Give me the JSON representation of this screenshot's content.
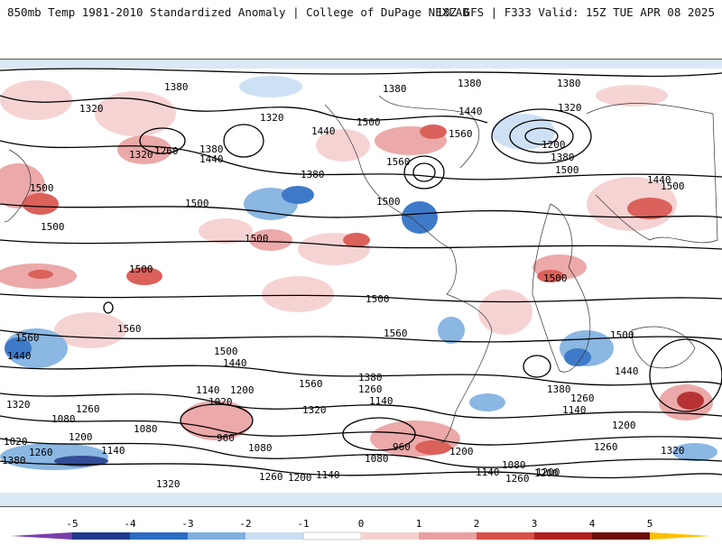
{
  "header": {
    "left": "850mb Temp 1981-2010 Standardized Anomaly | College of DuPage NEXLAB",
    "right": "18Z GFS | F333 Valid: 15Z TUE APR 08 2025"
  },
  "legend": {
    "ticks": [
      "-5",
      "-4",
      "-3",
      "-2",
      "-1",
      "0",
      "1",
      "2",
      "3",
      "4",
      "5"
    ],
    "colors": [
      "#7b3fa8",
      "#1f3a8a",
      "#2b6cc4",
      "#7fb0e0",
      "#c9def3",
      "#ffffff",
      "#f6cfcf",
      "#eaa0a0",
      "#d8504a",
      "#b01e1e",
      "#6e0a0a",
      "#ffbf00"
    ]
  },
  "contour_labels": [
    {
      "id": "c1",
      "text": "1380"
    },
    {
      "id": "c2",
      "text": "1320"
    },
    {
      "id": "c3",
      "text": "1320"
    },
    {
      "id": "c4",
      "text": "1260"
    },
    {
      "id": "c5",
      "text": "1380"
    },
    {
      "id": "c6",
      "text": "1440"
    },
    {
      "id": "c7",
      "text": "1320"
    },
    {
      "id": "c8",
      "text": "1440"
    },
    {
      "id": "c9",
      "text": "1380"
    },
    {
      "id": "c10",
      "text": "1380"
    },
    {
      "id": "c11",
      "text": "1500"
    },
    {
      "id": "c12",
      "text": "1560"
    },
    {
      "id": "c13",
      "text": "1560"
    },
    {
      "id": "c14",
      "text": "1500"
    },
    {
      "id": "c15",
      "text": "1380"
    },
    {
      "id": "c16",
      "text": "1440"
    },
    {
      "id": "c17",
      "text": "1380"
    },
    {
      "id": "c18",
      "text": "1320"
    },
    {
      "id": "c19",
      "text": "1200"
    },
    {
      "id": "c20",
      "text": "1380"
    },
    {
      "id": "c21",
      "text": "1500"
    },
    {
      "id": "c22",
      "text": "1440"
    },
    {
      "id": "c23",
      "text": "1500"
    },
    {
      "id": "c24",
      "text": "1500"
    },
    {
      "id": "c25",
      "text": "1500"
    },
    {
      "id": "c26",
      "text": "1500"
    },
    {
      "id": "c27",
      "text": "1500"
    },
    {
      "id": "c28",
      "text": "1500"
    },
    {
      "id": "c29",
      "text": "1500"
    },
    {
      "id": "c30",
      "text": "1500"
    },
    {
      "id": "c31",
      "text": "1560"
    },
    {
      "id": "c32",
      "text": "1560"
    },
    {
      "id": "c33",
      "text": "1440"
    },
    {
      "id": "c34",
      "text": "1560"
    },
    {
      "id": "c35",
      "text": "1500"
    },
    {
      "id": "c36",
      "text": "1440"
    },
    {
      "id": "c37",
      "text": "1560"
    },
    {
      "id": "c38",
      "text": "1500"
    },
    {
      "id": "c39",
      "text": "1440"
    },
    {
      "id": "c40",
      "text": "1380"
    },
    {
      "id": "c41",
      "text": "1260"
    },
    {
      "id": "c42",
      "text": "1140"
    },
    {
      "id": "c43",
      "text": "1320"
    },
    {
      "id": "c44",
      "text": "1380"
    },
    {
      "id": "c45",
      "text": "1260"
    },
    {
      "id": "c46",
      "text": "1140"
    },
    {
      "id": "c47",
      "text": "1140"
    },
    {
      "id": "c48",
      "text": "1200"
    },
    {
      "id": "c49",
      "text": "1020"
    },
    {
      "id": "c50",
      "text": "1320"
    },
    {
      "id": "c51",
      "text": "1260"
    },
    {
      "id": "c52",
      "text": "1080"
    },
    {
      "id": "c53",
      "text": "1080"
    },
    {
      "id": "c54",
      "text": "960"
    },
    {
      "id": "c55",
      "text": "1020"
    },
    {
      "id": "c56",
      "text": "1200"
    },
    {
      "id": "c57",
      "text": "1260"
    },
    {
      "id": "c58",
      "text": "1140"
    },
    {
      "id": "c59",
      "text": "1080"
    },
    {
      "id": "c60",
      "text": "960"
    },
    {
      "id": "c61",
      "text": "1200"
    },
    {
      "id": "c62",
      "text": "1080"
    },
    {
      "id": "c63",
      "text": "1200"
    },
    {
      "id": "c64",
      "text": "1260"
    },
    {
      "id": "c65",
      "text": "1320"
    },
    {
      "id": "c66",
      "text": "1380"
    },
    {
      "id": "c67",
      "text": "1320"
    },
    {
      "id": "c68",
      "text": "1260"
    },
    {
      "id": "c69",
      "text": "1200"
    },
    {
      "id": "c70",
      "text": "1140"
    },
    {
      "id": "c71",
      "text": "1080"
    },
    {
      "id": "c72",
      "text": "1200"
    },
    {
      "id": "c73",
      "text": "1260"
    },
    {
      "id": "c74",
      "text": "1140"
    },
    {
      "id": "c75",
      "text": "1200"
    }
  ]
}
